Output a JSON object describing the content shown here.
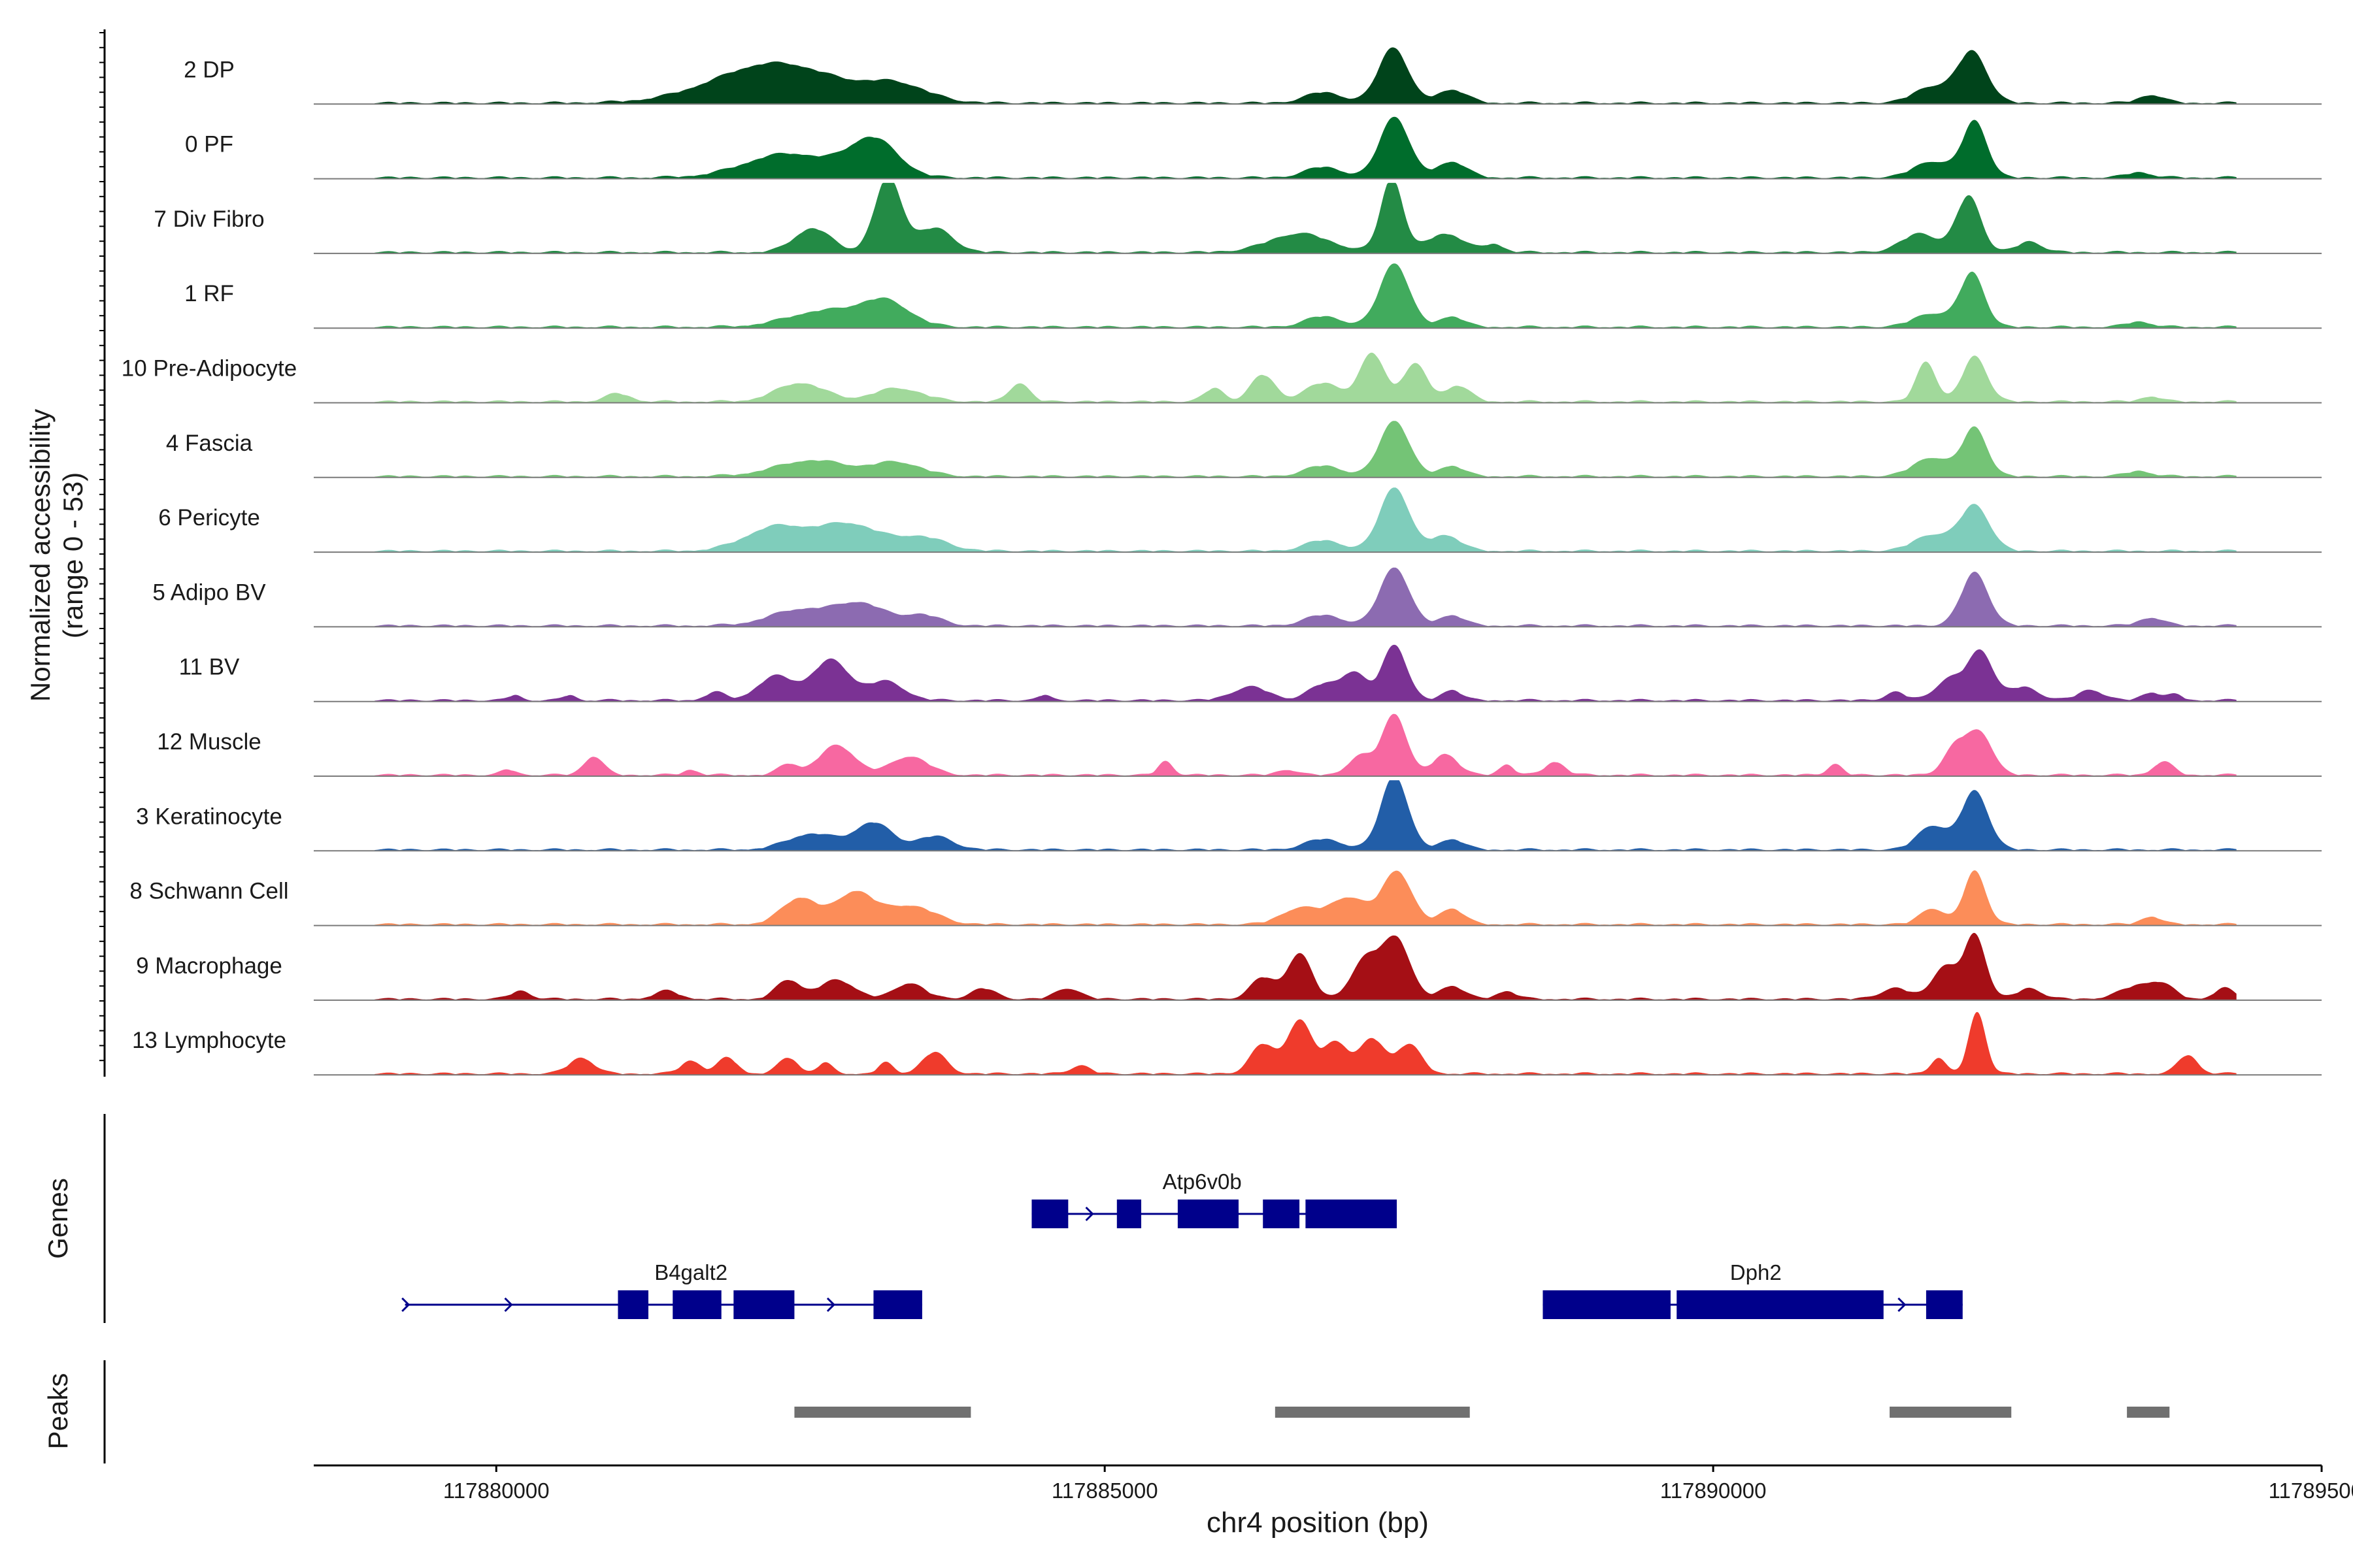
{
  "chart_data": {
    "type": "area",
    "title": "",
    "y_axis_label": "Normalized accessibility",
    "y_axis_sublabel": "(range 0 - 53)",
    "ylim": [
      0,
      53
    ],
    "xlabel": "chr4 position (bp)",
    "xlim": [
      117878500,
      117895000
    ],
    "x_ticks": [
      {
        "value": 117880000,
        "label": "117880000"
      },
      {
        "value": 117885000,
        "label": "117885000"
      },
      {
        "value": 117890000,
        "label": "117890000"
      },
      {
        "value": 117895000,
        "label": "117895000"
      }
    ],
    "tracks": [
      {
        "name": "2 DP",
        "color": "#00441b",
        "peaks": [
          [
            117882300,
            30,
            500
          ],
          [
            117883300,
            12,
            250
          ],
          [
            117886800,
            8,
            150
          ],
          [
            117887370,
            42,
            120
          ],
          [
            117887850,
            10,
            120
          ],
          [
            117891800,
            12,
            150
          ],
          [
            117892130,
            38,
            120
          ],
          [
            117893600,
            6,
            100
          ]
        ]
      },
      {
        "name": "0 PF",
        "color": "#006d2c",
        "peaks": [
          [
            117882400,
            18,
            350
          ],
          [
            117883100,
            28,
            200
          ],
          [
            117886800,
            8,
            150
          ],
          [
            117887380,
            46,
            120
          ],
          [
            117887850,
            12,
            120
          ],
          [
            117891800,
            12,
            150
          ],
          [
            117892150,
            42,
            100
          ],
          [
            117893500,
            4,
            100
          ]
        ]
      },
      {
        "name": "7 Div Fibro",
        "color": "#238b45",
        "peaks": [
          [
            117882600,
            18,
            150
          ],
          [
            117883220,
            56,
            110
          ],
          [
            117883600,
            18,
            150
          ],
          [
            117886600,
            14,
            250
          ],
          [
            117887360,
            56,
            90
          ],
          [
            117887800,
            14,
            150
          ],
          [
            117888200,
            6,
            80
          ],
          [
            117891700,
            14,
            150
          ],
          [
            117892100,
            42,
            100
          ],
          [
            117892600,
            8,
            100
          ]
        ]
      },
      {
        "name": "1 RF",
        "color": "#41ab5d",
        "peaks": [
          [
            117882700,
            12,
            300
          ],
          [
            117883200,
            18,
            200
          ],
          [
            117886800,
            8,
            150
          ],
          [
            117887380,
            48,
            120
          ],
          [
            117887850,
            8,
            100
          ],
          [
            117891800,
            10,
            150
          ],
          [
            117892130,
            40,
            100
          ],
          [
            117893500,
            4,
            100
          ]
        ]
      },
      {
        "name": "10 Pre-Adipocyte",
        "color": "#a1d99b",
        "peaks": [
          [
            117881000,
            6,
            100
          ],
          [
            117882500,
            14,
            200
          ],
          [
            117883300,
            10,
            200
          ],
          [
            117884300,
            14,
            80
          ],
          [
            117885900,
            10,
            80
          ],
          [
            117886300,
            20,
            100
          ],
          [
            117886800,
            14,
            150
          ],
          [
            117887200,
            36,
            100
          ],
          [
            117887550,
            28,
            100
          ],
          [
            117887900,
            12,
            100
          ],
          [
            117891750,
            30,
            80
          ],
          [
            117892150,
            34,
            100
          ],
          [
            117893600,
            4,
            80
          ]
        ]
      },
      {
        "name": "4 Fascia",
        "color": "#74c476",
        "peaks": [
          [
            117882600,
            12,
            300
          ],
          [
            117883300,
            10,
            200
          ],
          [
            117886800,
            8,
            150
          ],
          [
            117887380,
            42,
            120
          ],
          [
            117887850,
            8,
            100
          ],
          [
            117891800,
            14,
            150
          ],
          [
            117892150,
            36,
            100
          ],
          [
            117893500,
            4,
            100
          ]
        ]
      },
      {
        "name": "6 Pericyte",
        "color": "#7fcdbb",
        "peaks": [
          [
            117882300,
            18,
            250
          ],
          [
            117882900,
            20,
            250
          ],
          [
            117883500,
            10,
            200
          ],
          [
            117886800,
            8,
            150
          ],
          [
            117887380,
            48,
            120
          ],
          [
            117887800,
            12,
            120
          ],
          [
            117891800,
            12,
            150
          ],
          [
            117892150,
            34,
            120
          ]
        ]
      },
      {
        "name": "5 Adipo BV",
        "color": "#8c6bb1",
        "peaks": [
          [
            117882500,
            12,
            250
          ],
          [
            117883000,
            16,
            200
          ],
          [
            117883500,
            8,
            150
          ],
          [
            117886800,
            8,
            150
          ],
          [
            117887380,
            44,
            120
          ],
          [
            117887850,
            8,
            100
          ],
          [
            117892150,
            40,
            110
          ],
          [
            117893600,
            6,
            100
          ]
        ]
      },
      {
        "name": "11 BV",
        "color": "#7b3294",
        "peaks": [
          [
            117880150,
            4,
            50
          ],
          [
            117880600,
            4,
            50
          ],
          [
            117881800,
            6,
            80
          ],
          [
            117882300,
            18,
            150
          ],
          [
            117882750,
            30,
            150
          ],
          [
            117883200,
            14,
            150
          ],
          [
            117884500,
            4,
            50
          ],
          [
            117886200,
            10,
            150
          ],
          [
            117886800,
            12,
            120
          ],
          [
            117887050,
            20,
            100
          ],
          [
            117887380,
            42,
            100
          ],
          [
            117887850,
            8,
            80
          ],
          [
            117891500,
            6,
            80
          ],
          [
            117891950,
            16,
            120
          ],
          [
            117892200,
            36,
            100
          ],
          [
            117892550,
            10,
            120
          ],
          [
            117893100,
            8,
            100
          ],
          [
            117893600,
            6,
            80
          ],
          [
            117893800,
            4,
            60
          ]
        ]
      },
      {
        "name": "12 Muscle",
        "color": "#f768a1",
        "peaks": [
          [
            117880100,
            4,
            60
          ],
          [
            117880800,
            14,
            80
          ],
          [
            117881600,
            4,
            60
          ],
          [
            117882400,
            8,
            80
          ],
          [
            117882800,
            22,
            150
          ],
          [
            117883400,
            14,
            150
          ],
          [
            117885500,
            10,
            60
          ],
          [
            117886500,
            4,
            80
          ],
          [
            117887100,
            14,
            100
          ],
          [
            117887380,
            46,
            100
          ],
          [
            117887800,
            16,
            100
          ],
          [
            117888300,
            8,
            60
          ],
          [
            117888700,
            10,
            80
          ],
          [
            117891000,
            8,
            60
          ],
          [
            117892000,
            22,
            100
          ],
          [
            117892200,
            30,
            100
          ],
          [
            117893700,
            10,
            80
          ]
        ]
      },
      {
        "name": "3 Keratinocyte",
        "color": "#225ea8",
        "peaks": [
          [
            117882600,
            12,
            200
          ],
          [
            117883100,
            20,
            150
          ],
          [
            117883600,
            10,
            150
          ],
          [
            117886800,
            8,
            150
          ],
          [
            117887380,
            56,
            110
          ],
          [
            117887850,
            8,
            100
          ],
          [
            117891800,
            18,
            120
          ],
          [
            117892150,
            44,
            110
          ]
        ]
      },
      {
        "name": "8 Schwann Cell",
        "color": "#fc8d59",
        "peaks": [
          [
            117882500,
            20,
            150
          ],
          [
            117882950,
            24,
            150
          ],
          [
            117883400,
            14,
            200
          ],
          [
            117886600,
            12,
            150
          ],
          [
            117887000,
            20,
            150
          ],
          [
            117887400,
            40,
            120
          ],
          [
            117887850,
            12,
            100
          ],
          [
            117891800,
            12,
            100
          ],
          [
            117892150,
            40,
            90
          ],
          [
            117893600,
            6,
            80
          ]
        ]
      },
      {
        "name": "9 Macrophage",
        "color": "#a50f15",
        "peaks": [
          [
            117880200,
            6,
            80
          ],
          [
            117881400,
            6,
            100
          ],
          [
            117882400,
            14,
            100
          ],
          [
            117882800,
            14,
            150
          ],
          [
            117883400,
            12,
            120
          ],
          [
            117884000,
            8,
            100
          ],
          [
            117884700,
            8,
            100
          ],
          [
            117886300,
            16,
            100
          ],
          [
            117886600,
            34,
            100
          ],
          [
            117887150,
            30,
            120
          ],
          [
            117887400,
            44,
            110
          ],
          [
            117887850,
            10,
            100
          ],
          [
            117888300,
            6,
            80
          ],
          [
            117891500,
            8,
            120
          ],
          [
            117891900,
            24,
            100
          ],
          [
            117892150,
            48,
            90
          ],
          [
            117892600,
            8,
            100
          ],
          [
            117893500,
            10,
            150
          ],
          [
            117893700,
            8,
            100
          ],
          [
            117894200,
            8,
            80
          ]
        ]
      },
      {
        "name": "13 Lymphocyte",
        "color": "#ef3b2c",
        "peaks": [
          [
            117880700,
            12,
            100
          ],
          [
            117881600,
            10,
            80
          ],
          [
            117881900,
            12,
            80
          ],
          [
            117882400,
            12,
            80
          ],
          [
            117882700,
            8,
            60
          ],
          [
            117883200,
            8,
            60
          ],
          [
            117883600,
            16,
            100
          ],
          [
            117884800,
            6,
            80
          ],
          [
            117886300,
            22,
            100
          ],
          [
            117886600,
            40,
            100
          ],
          [
            117886900,
            24,
            100
          ],
          [
            117887200,
            26,
            100
          ],
          [
            117887500,
            22,
            100
          ],
          [
            117891850,
            12,
            60
          ],
          [
            117892170,
            46,
            70
          ],
          [
            117893900,
            14,
            80
          ]
        ]
      }
    ],
    "genes": [
      {
        "name": "B4galt2",
        "strand": "-",
        "start": 117879250,
        "end": 117883500,
        "exons": [
          [
            117881000,
            117881250
          ],
          [
            117881450,
            117881850
          ],
          [
            117881950,
            117882450
          ],
          [
            117883100,
            117883500
          ]
        ],
        "label_pos": 117881600,
        "row": 2
      },
      {
        "name": "Atp6v0b",
        "strand": "-",
        "start": 117884400,
        "end": 117887400,
        "exons": [
          [
            117884400,
            117884700
          ],
          [
            117885100,
            117885300
          ],
          [
            117885600,
            117886100
          ],
          [
            117886300,
            117886600
          ],
          [
            117886650,
            117887400
          ]
        ],
        "label_pos": 117885800,
        "row": 1
      },
      {
        "name": "Dph2",
        "strand": "-",
        "start": 117888600,
        "end": 117892050,
        "exons": [
          [
            117888600,
            117889650
          ],
          [
            117889700,
            117891400
          ],
          [
            117891750,
            117892050
          ]
        ],
        "label_pos": 117890350,
        "row": 2
      }
    ],
    "gene_track_label": "Genes",
    "peaks_track_label": "Peaks",
    "peak_regions": [
      [
        117882450,
        117883900
      ],
      [
        117886400,
        117888000
      ],
      [
        117891450,
        117892450
      ],
      [
        117893400,
        117893750
      ]
    ]
  }
}
